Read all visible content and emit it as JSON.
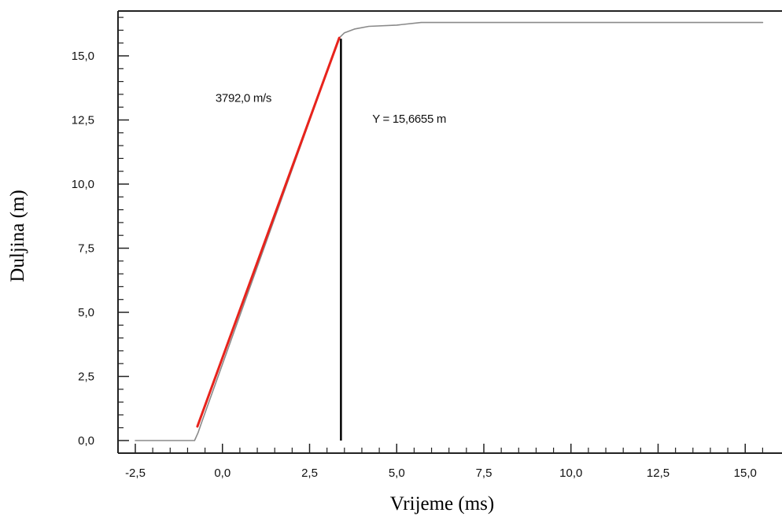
{
  "chart_data": {
    "type": "line",
    "title": "",
    "xlabel": "Vrijeme (ms)",
    "ylabel": "Duljina (m)",
    "xlim": [
      -2.5,
      15.8
    ],
    "ylim": [
      -0.4,
      17.2
    ],
    "x_ticks": [
      -2.5,
      0.0,
      2.5,
      5.0,
      7.5,
      10.0,
      12.5,
      15.0
    ],
    "x_tick_labels": [
      "-2,5",
      "0,0",
      "2,5",
      "5,0",
      "7,5",
      "10,0",
      "12,5",
      "15,0"
    ],
    "y_ticks": [
      0.0,
      2.5,
      5.0,
      7.5,
      10.0,
      12.5,
      15.0
    ],
    "y_tick_labels": [
      "0,0",
      "2,5",
      "5,0",
      "7,5",
      "10,0",
      "12,5",
      "15,0"
    ],
    "grid": false,
    "series": [
      {
        "color": "#8a8a8a",
        "points": [
          [
            -2.5,
            0.0
          ],
          [
            -0.8,
            0.0
          ],
          [
            -0.7,
            0.3
          ],
          [
            -0.6,
            0.7
          ],
          [
            3.35,
            15.7
          ],
          [
            3.5,
            15.9
          ],
          [
            3.8,
            16.05
          ],
          [
            4.2,
            16.15
          ],
          [
            5.0,
            16.2
          ],
          [
            5.7,
            16.3
          ],
          [
            15.5,
            16.3
          ]
        ]
      },
      {
        "color": "#e8231c",
        "points": [
          [
            -0.72,
            0.55
          ],
          [
            3.35,
            15.7
          ]
        ]
      }
    ],
    "annotations": [
      {
        "text": "3792,0 m/s",
        "x": -0.2,
        "y": 13.2
      },
      {
        "text": "Y = 15,6655 m",
        "x": 4.3,
        "y": 12.4
      },
      {
        "type": "vline",
        "x": 3.4,
        "y_from": 0.0,
        "y_to": 15.6655,
        "color": "#000000"
      }
    ]
  }
}
